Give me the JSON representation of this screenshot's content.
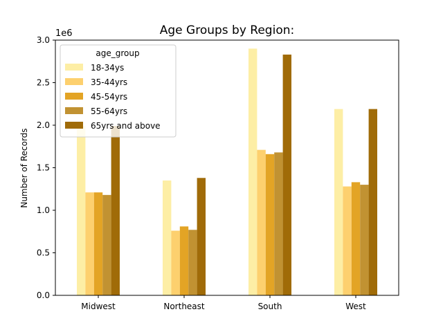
{
  "chart_data": {
    "type": "bar",
    "title": "Age Groups by Region:",
    "xlabel": "",
    "ylabel": "Number of Records",
    "y_scale_label": "1e6",
    "ylim": [
      0,
      3000000
    ],
    "yticks": [
      0,
      500000,
      1000000,
      1500000,
      2000000,
      2500000,
      3000000
    ],
    "ytick_labels": [
      "0.0",
      "0.5",
      "1.0",
      "1.5",
      "2.0",
      "2.5",
      "3.0"
    ],
    "categories": [
      "Midwest",
      "Northeast",
      "South",
      "West"
    ],
    "legend_title": "age_group",
    "legend_position": "top-left",
    "grid": false,
    "series": [
      {
        "name": "18-34ys",
        "color": "#fdeea5",
        "values": [
          1990000,
          1350000,
          2900000,
          2190000
        ]
      },
      {
        "name": "35-44yrs",
        "color": "#fdd06e",
        "values": [
          1210000,
          760000,
          1710000,
          1280000
        ]
      },
      {
        "name": "45-54yrs",
        "color": "#e3a425",
        "values": [
          1210000,
          810000,
          1660000,
          1330000
        ]
      },
      {
        "name": "55-64yrs",
        "color": "#c19232",
        "values": [
          1180000,
          770000,
          1680000,
          1300000
        ]
      },
      {
        "name": "65yrs and above",
        "color": "#a06b08",
        "values": [
          1990000,
          1380000,
          2830000,
          2190000
        ]
      }
    ]
  }
}
